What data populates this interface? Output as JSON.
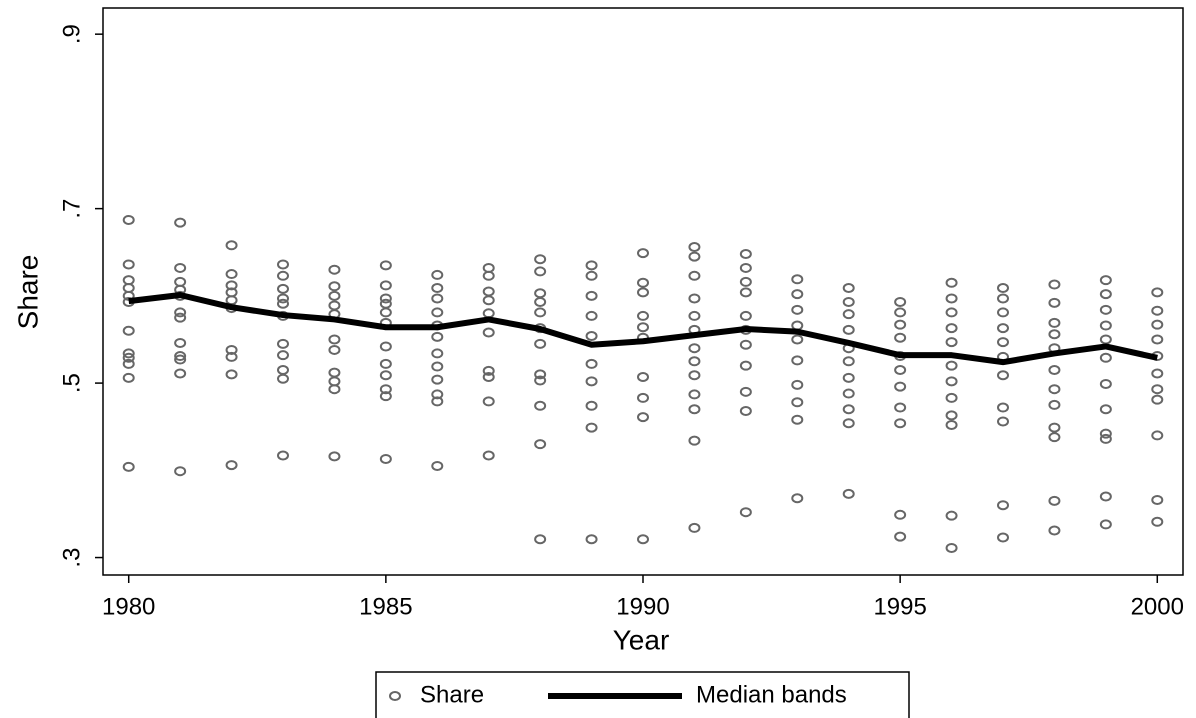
{
  "chart_data": {
    "type": "scatter",
    "x_label": "Year",
    "y_label": "Share",
    "xlim": [
      1979.5,
      2000.5
    ],
    "ylim": [
      0.28,
      0.93
    ],
    "xticks": [
      1980,
      1985,
      1990,
      1995,
      2000
    ],
    "yticks": [
      {
        "value": 0.3,
        "label": ".3"
      },
      {
        "value": 0.5,
        "label": ".5"
      },
      {
        "value": 0.7,
        "label": ".7"
      },
      {
        "value": 0.9,
        "label": ".9"
      }
    ],
    "grid": false,
    "legend": "bottom",
    "series": [
      {
        "name": "Share",
        "type": "scatter",
        "color": "#666666",
        "x": [
          1980,
          1980,
          1980,
          1980,
          1980,
          1980,
          1980,
          1980,
          1980,
          1980,
          1980,
          1980,
          1981,
          1981,
          1981,
          1981,
          1981,
          1981,
          1981,
          1981,
          1981,
          1981,
          1981,
          1981,
          1982,
          1982,
          1982,
          1982,
          1982,
          1982,
          1982,
          1982,
          1982,
          1982,
          1983,
          1983,
          1983,
          1983,
          1983,
          1983,
          1983,
          1983,
          1983,
          1983,
          1983,
          1984,
          1984,
          1984,
          1984,
          1984,
          1984,
          1984,
          1984,
          1984,
          1984,
          1984,
          1985,
          1985,
          1985,
          1985,
          1985,
          1985,
          1985,
          1985,
          1985,
          1985,
          1985,
          1985,
          1986,
          1986,
          1986,
          1986,
          1986,
          1986,
          1986,
          1986,
          1986,
          1986,
          1986,
          1986,
          1987,
          1987,
          1987,
          1987,
          1987,
          1987,
          1987,
          1987,
          1987,
          1987,
          1988,
          1988,
          1988,
          1988,
          1988,
          1988,
          1988,
          1988,
          1988,
          1988,
          1988,
          1988,
          1989,
          1989,
          1989,
          1989,
          1989,
          1989,
          1989,
          1989,
          1989,
          1989,
          1990,
          1990,
          1990,
          1990,
          1990,
          1990,
          1990,
          1990,
          1990,
          1990,
          1991,
          1991,
          1991,
          1991,
          1991,
          1991,
          1991,
          1991,
          1991,
          1991,
          1991,
          1991,
          1991,
          1992,
          1992,
          1992,
          1992,
          1992,
          1992,
          1992,
          1992,
          1992,
          1992,
          1992,
          1993,
          1993,
          1993,
          1993,
          1993,
          1993,
          1993,
          1993,
          1993,
          1993,
          1994,
          1994,
          1994,
          1994,
          1994,
          1994,
          1994,
          1994,
          1994,
          1994,
          1994,
          1995,
          1995,
          1995,
          1995,
          1995,
          1995,
          1995,
          1995,
          1995,
          1995,
          1995,
          1996,
          1996,
          1996,
          1996,
          1996,
          1996,
          1996,
          1996,
          1996,
          1996,
          1996,
          1996,
          1997,
          1997,
          1997,
          1997,
          1997,
          1997,
          1997,
          1997,
          1997,
          1997,
          1997,
          1998,
          1998,
          1998,
          1998,
          1998,
          1998,
          1998,
          1998,
          1998,
          1998,
          1998,
          1998,
          1999,
          1999,
          1999,
          1999,
          1999,
          1999,
          1999,
          1999,
          1999,
          1999,
          1999,
          1999,
          2000,
          2000,
          2000,
          2000,
          2000,
          2000,
          2000,
          2000,
          2000,
          2000,
          2000
        ],
        "values": [
          0.687,
          0.636,
          0.618,
          0.609,
          0.6,
          0.593,
          0.56,
          0.534,
          0.529,
          0.522,
          0.506,
          0.404,
          0.684,
          0.632,
          0.616,
          0.607,
          0.6,
          0.581,
          0.575,
          0.546,
          0.531,
          0.527,
          0.511,
          0.399,
          0.658,
          0.625,
          0.612,
          0.604,
          0.595,
          0.586,
          0.538,
          0.53,
          0.51,
          0.406,
          0.636,
          0.623,
          0.608,
          0.597,
          0.591,
          0.577,
          0.545,
          0.532,
          0.515,
          0.505,
          0.417,
          0.63,
          0.611,
          0.6,
          0.589,
          0.579,
          0.55,
          0.538,
          0.512,
          0.502,
          0.493,
          0.416,
          0.635,
          0.612,
          0.597,
          0.591,
          0.581,
          0.569,
          0.542,
          0.522,
          0.509,
          0.493,
          0.485,
          0.413,
          0.624,
          0.609,
          0.597,
          0.581,
          0.566,
          0.553,
          0.534,
          0.519,
          0.504,
          0.487,
          0.479,
          0.405,
          0.632,
          0.623,
          0.605,
          0.595,
          0.58,
          0.558,
          0.514,
          0.507,
          0.479,
          0.417,
          0.642,
          0.628,
          0.603,
          0.593,
          0.581,
          0.563,
          0.545,
          0.51,
          0.503,
          0.474,
          0.43,
          0.321,
          0.635,
          0.623,
          0.6,
          0.577,
          0.554,
          0.522,
          0.502,
          0.474,
          0.449,
          0.321,
          0.649,
          0.615,
          0.604,
          0.577,
          0.564,
          0.552,
          0.507,
          0.483,
          0.461,
          0.321,
          0.656,
          0.645,
          0.623,
          0.597,
          0.577,
          0.561,
          0.54,
          0.525,
          0.509,
          0.487,
          0.47,
          0.434,
          0.334,
          0.648,
          0.632,
          0.616,
          0.604,
          0.577,
          0.561,
          0.544,
          0.52,
          0.49,
          0.468,
          0.352,
          0.619,
          0.602,
          0.584,
          0.566,
          0.55,
          0.526,
          0.498,
          0.478,
          0.458,
          0.368,
          0.609,
          0.593,
          0.579,
          0.561,
          0.54,
          0.525,
          0.506,
          0.488,
          0.47,
          0.454,
          0.373,
          0.593,
          0.581,
          0.567,
          0.552,
          0.531,
          0.515,
          0.496,
          0.472,
          0.454,
          0.349,
          0.324,
          0.615,
          0.597,
          0.581,
          0.563,
          0.547,
          0.52,
          0.502,
          0.483,
          0.463,
          0.452,
          0.348,
          0.311,
          0.609,
          0.597,
          0.581,
          0.563,
          0.547,
          0.53,
          0.509,
          0.472,
          0.456,
          0.36,
          0.323,
          0.613,
          0.592,
          0.569,
          0.556,
          0.54,
          0.515,
          0.493,
          0.475,
          0.449,
          0.438,
          0.365,
          0.331,
          0.618,
          0.602,
          0.584,
          0.566,
          0.55,
          0.529,
          0.499,
          0.47,
          0.442,
          0.436,
          0.37,
          0.338,
          0.604,
          0.583,
          0.567,
          0.55,
          0.531,
          0.511,
          0.493,
          0.481,
          0.44,
          0.366,
          0.341
        ]
      },
      {
        "name": "Median bands",
        "type": "line",
        "color": "#000000",
        "x": [
          1980,
          1981,
          1982,
          1983,
          1984,
          1985,
          1986,
          1987,
          1988,
          1989,
          1990,
          1991,
          1992,
          1993,
          1994,
          1995,
          1996,
          1997,
          1998,
          1999,
          2000
        ],
        "values": [
          0.594,
          0.601,
          0.587,
          0.578,
          0.573,
          0.564,
          0.564,
          0.573,
          0.562,
          0.544,
          0.548,
          0.555,
          0.562,
          0.559,
          0.546,
          0.532,
          0.532,
          0.524,
          0.534,
          0.542,
          0.529
        ]
      }
    ]
  }
}
